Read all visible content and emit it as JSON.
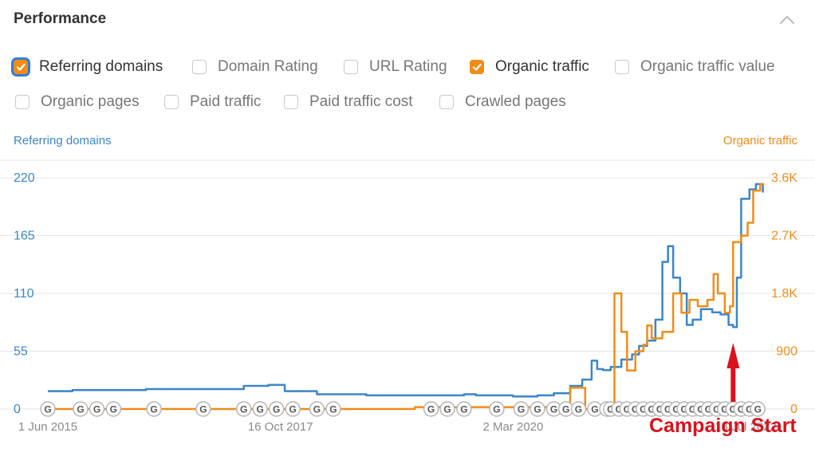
{
  "header": {
    "title": "Performance"
  },
  "filters": [
    {
      "label": "Referring domains",
      "checked": true,
      "focused": true
    },
    {
      "label": "Domain Rating",
      "checked": false
    },
    {
      "label": "URL Rating",
      "checked": false
    },
    {
      "label": "Organic traffic",
      "checked": true
    },
    {
      "label": "Organic traffic value",
      "checked": false
    },
    {
      "label": "Organic pages",
      "checked": false
    },
    {
      "label": "Paid traffic",
      "checked": false
    },
    {
      "label": "Paid traffic cost",
      "checked": false
    },
    {
      "label": "Crawled pages",
      "checked": false
    }
  ],
  "colors": {
    "referring": "#3b86c9",
    "organic": "#f28c18",
    "annotation": "#d8121c",
    "grid": "#e6e6e6"
  },
  "chart_data": {
    "type": "line",
    "ylabel_left": "Referring domains",
    "ylabel_right": "Organic traffic",
    "y_left_ticks": [
      "0",
      "55",
      "110",
      "165",
      "220"
    ],
    "y_right_ticks": [
      "0",
      "900",
      "1.8K",
      "2.7K",
      "3.6K"
    ],
    "y_left_range": [
      0,
      220
    ],
    "y_right_range": [
      0,
      3600
    ],
    "x_range": [
      "2015-06-01",
      "2022-09-30"
    ],
    "x_ticks": [
      {
        "label": "1 Jun 2015",
        "date": "2015-06-01"
      },
      {
        "label": "16 Oct 2017",
        "date": "2017-10-16"
      },
      {
        "label": "2 Mar 2020",
        "date": "2020-03-02"
      },
      {
        "label": "18 Jul 2022",
        "date": "2022-07-18"
      }
    ],
    "series": [
      {
        "name": "Referring domains",
        "axis": "left",
        "points": [
          [
            "2015-06-01",
            17
          ],
          [
            "2015-09-01",
            18
          ],
          [
            "2016-06-01",
            19
          ],
          [
            "2017-01-01",
            19
          ],
          [
            "2017-06-01",
            22
          ],
          [
            "2017-09-01",
            23
          ],
          [
            "2017-11-01",
            17
          ],
          [
            "2018-03-01",
            14
          ],
          [
            "2018-09-01",
            13
          ],
          [
            "2019-03-01",
            13
          ],
          [
            "2019-09-01",
            14
          ],
          [
            "2019-10-15",
            13
          ],
          [
            "2020-03-01",
            12
          ],
          [
            "2020-06-01",
            13
          ],
          [
            "2020-08-01",
            15
          ],
          [
            "2020-10-01",
            22
          ],
          [
            "2020-11-15",
            28
          ],
          [
            "2020-12-20",
            46
          ],
          [
            "2021-01-10",
            38
          ],
          [
            "2021-02-01",
            37
          ],
          [
            "2021-03-01",
            40
          ],
          [
            "2021-04-10",
            47
          ],
          [
            "2021-05-20",
            52
          ],
          [
            "2021-06-15",
            60
          ],
          [
            "2021-07-15",
            65
          ],
          [
            "2021-08-15",
            85
          ],
          [
            "2021-09-10",
            140
          ],
          [
            "2021-10-01",
            155
          ],
          [
            "2021-10-20",
            125
          ],
          [
            "2021-11-15",
            110
          ],
          [
            "2021-12-10",
            80
          ],
          [
            "2022-01-01",
            85
          ],
          [
            "2022-02-01",
            95
          ],
          [
            "2022-03-15",
            92
          ],
          [
            "2022-04-15",
            90
          ],
          [
            "2022-05-15",
            80
          ],
          [
            "2022-06-01",
            78
          ],
          [
            "2022-06-15",
            125
          ],
          [
            "2022-07-01",
            200
          ],
          [
            "2022-08-01",
            209
          ],
          [
            "2022-08-25",
            214
          ],
          [
            "2022-09-20",
            206
          ]
        ]
      },
      {
        "name": "Organic traffic",
        "axis": "right",
        "points": [
          [
            "2015-06-01",
            0
          ],
          [
            "2018-08-01",
            0
          ],
          [
            "2019-03-01",
            30
          ],
          [
            "2020-09-30",
            30
          ],
          [
            "2020-10-01",
            330
          ],
          [
            "2020-11-25",
            330
          ],
          [
            "2020-11-26",
            0
          ],
          [
            "2021-03-14",
            0
          ],
          [
            "2021-03-15",
            1800
          ],
          [
            "2021-04-01",
            1800
          ],
          [
            "2021-04-10",
            1200
          ],
          [
            "2021-05-01",
            600
          ],
          [
            "2021-06-01",
            900
          ],
          [
            "2021-07-01",
            1000
          ],
          [
            "2021-07-15",
            1300
          ],
          [
            "2021-08-01",
            1100
          ],
          [
            "2021-09-10",
            1200
          ],
          [
            "2021-10-20",
            1800
          ],
          [
            "2021-11-20",
            1500
          ],
          [
            "2021-12-20",
            1700
          ],
          [
            "2022-01-20",
            1600
          ],
          [
            "2022-02-25",
            1700
          ],
          [
            "2022-03-20",
            2100
          ],
          [
            "2022-04-05",
            1800
          ],
          [
            "2022-05-01",
            1500
          ],
          [
            "2022-05-20",
            1600
          ],
          [
            "2022-06-01",
            2600
          ],
          [
            "2022-07-01",
            2700
          ],
          [
            "2022-07-25",
            2900
          ],
          [
            "2022-08-15",
            3400
          ],
          [
            "2022-09-10",
            3500
          ],
          [
            "2022-09-25",
            3500
          ]
        ]
      }
    ],
    "event_markers": {
      "symbol": "G",
      "dates": [
        "2015-06-01",
        "2015-10-01",
        "2015-12-01",
        "2016-02-01",
        "2016-07-01",
        "2017-01-01",
        "2017-06-01",
        "2017-08-01",
        "2017-10-01",
        "2017-12-01",
        "2018-03-01",
        "2018-05-01",
        "2019-05-01",
        "2019-07-01",
        "2019-09-01",
        "2020-01-01",
        "2020-04-01",
        "2020-06-01",
        "2020-08-01",
        "2020-09-15",
        "2020-11-01",
        "2021-01-01",
        "2021-02-15",
        "2021-03-01",
        "2021-04-01",
        "2021-05-01",
        "2021-06-01",
        "2021-07-01",
        "2021-08-01",
        "2021-09-01",
        "2021-10-01",
        "2021-11-01",
        "2021-12-01",
        "2022-01-01",
        "2022-02-01",
        "2022-03-01",
        "2022-04-01",
        "2022-05-01",
        "2022-06-01",
        "2022-07-01",
        "2022-08-01",
        "2022-09-01"
      ]
    },
    "annotation": {
      "text": "Campaign Start",
      "date": "2022-06-01"
    },
    "grid": true,
    "legend": "none"
  }
}
